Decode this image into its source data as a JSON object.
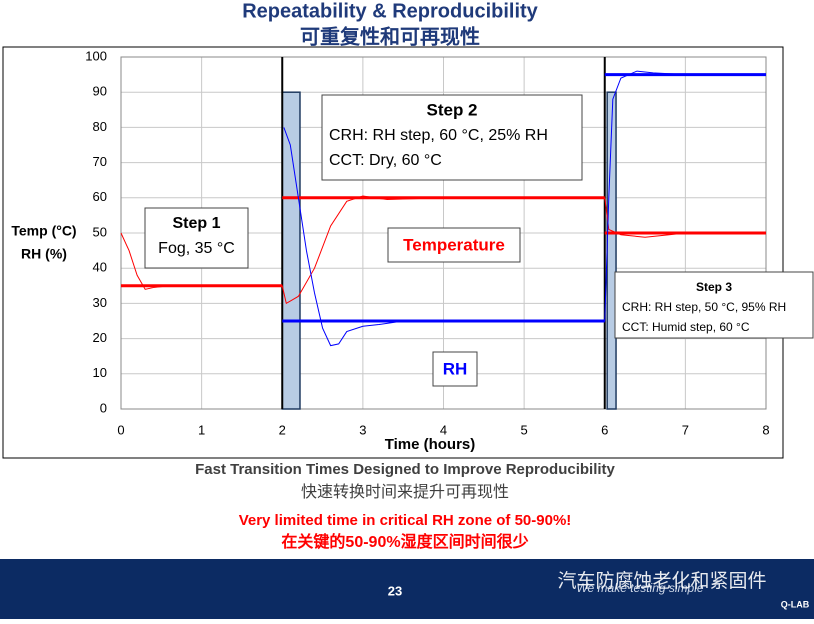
{
  "slide": {
    "title": "Repeatability & Reproducibility",
    "title_cn": "可重复性和可再现性",
    "caption": "Fast Transition Times Designed to Improve Reproducibility",
    "caption_cn": "快速转换时间来提升可再现性",
    "note": "Very limited time in critical RH zone of 50-90%!",
    "note_cn": "在关键的50-90%湿度区间时间很少",
    "page_number": "23",
    "tagline": "We make testing simple",
    "logo": "Q-LAB",
    "watermark": "汽车防腐蚀老化和紧固件"
  },
  "chart_data": {
    "type": "line",
    "y_label": [
      "Temp (°C)",
      "RH (%)"
    ],
    "x_label": "Time (hours)",
    "xlim": [
      0,
      8
    ],
    "xticks": [
      0,
      1,
      2,
      3,
      4,
      5,
      6,
      7,
      8
    ],
    "ylim": [
      0,
      100
    ],
    "yticks": [
      0,
      10,
      20,
      30,
      40,
      50,
      60,
      70,
      80,
      90,
      100
    ],
    "grid": true,
    "vlines": [
      2,
      6
    ],
    "shaded_regions": [
      {
        "x": [
          2,
          2.22
        ],
        "y": [
          0,
          90
        ]
      },
      {
        "x": [
          6.03,
          6.14
        ],
        "y": [
          0,
          90
        ]
      }
    ],
    "series": [
      {
        "name": "Temperature",
        "color": "#ff0000",
        "width": 3,
        "x": [
          0,
          2,
          2,
          2,
          6,
          6,
          6,
          8
        ],
        "values": [
          35,
          35,
          null,
          60,
          60,
          null,
          50,
          50
        ]
      },
      {
        "name": "RH",
        "color": "#0000ff",
        "width": 3,
        "x": [
          2,
          6,
          6,
          6,
          8
        ],
        "values": [
          25,
          25,
          null,
          95,
          95
        ]
      },
      {
        "color": "#ff0000",
        "width": 1,
        "x": [
          0,
          0.1,
          0.2,
          0.3,
          0.4,
          0.6,
          1,
          2,
          2.05,
          2.2,
          2.4,
          2.6,
          2.8,
          3.0,
          3.3,
          4,
          6,
          6.05,
          6.2,
          6.5,
          6.8,
          7
        ],
        "values": [
          50,
          45,
          38,
          34,
          34.5,
          35,
          35,
          35,
          30,
          32,
          40,
          52,
          59,
          60.5,
          59.5,
          60,
          60,
          51,
          49.5,
          48.8,
          49.5,
          50
        ]
      },
      {
        "color": "#0000ff",
        "width": 1,
        "x": [
          2.02,
          2.1,
          2.2,
          2.3,
          2.4,
          2.5,
          2.6,
          2.7,
          2.8,
          3.0,
          3.2,
          3.5,
          4,
          6,
          6.05,
          6.1,
          6.2,
          6.4,
          6.6,
          7,
          8
        ],
        "values": [
          80,
          75,
          60,
          45,
          33,
          23,
          18,
          18.5,
          22,
          23.5,
          24,
          25,
          25,
          25,
          60,
          88,
          94,
          96,
          95.5,
          95,
          95
        ]
      }
    ],
    "annotations": [
      {
        "lines": [
          "Step 1",
          "Fog, 35 °C"
        ]
      },
      {
        "lines": [
          "Step 2",
          "CRH: RH step, 60 °C, 25% RH",
          "CCT: Dry, 60 °C"
        ]
      },
      {
        "lines": [
          "Step 3",
          "CRH: RH step, 50 °C, 95% RH",
          "CCT: Humid step, 60 °C"
        ]
      }
    ]
  }
}
